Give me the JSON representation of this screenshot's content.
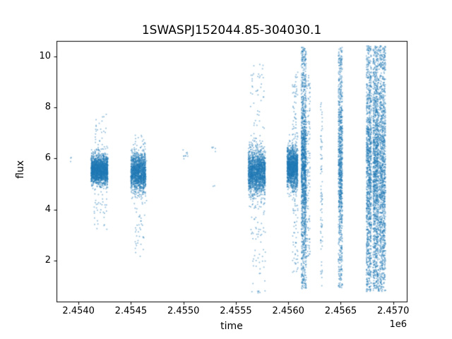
{
  "chart_data": {
    "type": "scatter",
    "title": "1SWASPJ152044.85-304030.1",
    "xlabel": "time",
    "ylabel": "flux",
    "x_offset_label": "1e6",
    "xlim": [
      2453790,
      2457130
    ],
    "ylim": [
      0.4,
      10.6
    ],
    "x_ticks": {
      "values": [
        2454000,
        2454500,
        2455000,
        2455500,
        2456000,
        2456500,
        2457000
      ],
      "labels": [
        "2.4540",
        "2.4545",
        "2.4550",
        "2.4555",
        "2.4560",
        "2.4565",
        "2.4570"
      ]
    },
    "y_ticks": {
      "values": [
        2,
        4,
        6,
        8,
        10
      ],
      "labels": [
        "2",
        "4",
        "6",
        "8",
        "10"
      ]
    },
    "grid": false,
    "legend": null,
    "point_color": "#1f77b4",
    "point_alpha": 0.45,
    "point_size": 1.8,
    "clusters": [
      {
        "type": "band",
        "x": [
          2453918,
          2453936
        ],
        "y_mean": 6.0,
        "y_sd": 0.06,
        "n": 3
      },
      {
        "type": "band",
        "x": [
          2454118,
          2454280
        ],
        "y_mean": 5.55,
        "y_sd": 0.27,
        "n": 1900
      },
      {
        "type": "column",
        "x": [
          2454145,
          2454272
        ],
        "y": [
          3.2,
          7.8
        ],
        "n": 110
      },
      {
        "type": "band",
        "x": [
          2454498,
          2454642
        ],
        "y_mean": 5.45,
        "y_sd": 0.38,
        "n": 1400
      },
      {
        "type": "column",
        "x": [
          2454535,
          2454635
        ],
        "y": [
          2.0,
          7.0
        ],
        "n": 85
      },
      {
        "type": "band",
        "x": [
          2454998,
          2455048
        ],
        "y_mean": 6.15,
        "y_sd": 0.1,
        "n": 10
      },
      {
        "type": "band",
        "x": [
          2455268,
          2455312
        ],
        "y_mean": 6.4,
        "y_sd": 0.06,
        "n": 5
      },
      {
        "type": "band",
        "x": [
          2455278,
          2455302
        ],
        "y_mean": 4.95,
        "y_sd": 0.06,
        "n": 2
      },
      {
        "type": "band",
        "x": [
          2455618,
          2455782
        ],
        "y_mean": 5.45,
        "y_sd": 0.42,
        "n": 1700
      },
      {
        "type": "column",
        "x": [
          2455640,
          2455782
        ],
        "y": [
          0.7,
          9.7
        ],
        "n": 150
      },
      {
        "type": "band",
        "x": [
          2455988,
          2456092
        ],
        "y_mean": 5.65,
        "y_sd": 0.4,
        "n": 1400
      },
      {
        "type": "column",
        "x": [
          2456038,
          2456092
        ],
        "y": [
          1.5,
          9.5
        ],
        "n": 140
      },
      {
        "type": "column",
        "x": [
          2456124,
          2456172
        ],
        "y": [
          0.9,
          10.35
        ],
        "n": 1500,
        "core": {
          "mean": 5.7,
          "sd": 1.1,
          "frac": 0.45
        }
      },
      {
        "type": "column",
        "x": [
          2456178,
          2456208
        ],
        "y": [
          2.0,
          9.3
        ],
        "n": 110
      },
      {
        "type": "column",
        "x": [
          2456308,
          2456326
        ],
        "y": [
          1.0,
          8.2
        ],
        "n": 80
      },
      {
        "type": "column",
        "x": [
          2456478,
          2456516
        ],
        "y": [
          0.9,
          10.35
        ],
        "n": 950,
        "core": {
          "mean": 5.6,
          "sd": 1.2,
          "frac": 0.4
        }
      },
      {
        "type": "column",
        "x": [
          2456744,
          2456792
        ],
        "y": [
          0.8,
          10.4
        ],
        "n": 1150,
        "core": {
          "mean": 5.5,
          "sd": 1.6,
          "frac": 0.35
        }
      },
      {
        "type": "column",
        "x": [
          2456808,
          2456862
        ],
        "y": [
          0.8,
          10.4
        ],
        "n": 1350,
        "core": {
          "mean": 5.5,
          "sd": 1.6,
          "frac": 0.35
        }
      },
      {
        "type": "column",
        "x": [
          2456868,
          2456928
        ],
        "y": [
          0.8,
          10.4
        ],
        "n": 1250,
        "core": {
          "mean": 5.3,
          "sd": 1.7,
          "frac": 0.35
        }
      }
    ]
  }
}
